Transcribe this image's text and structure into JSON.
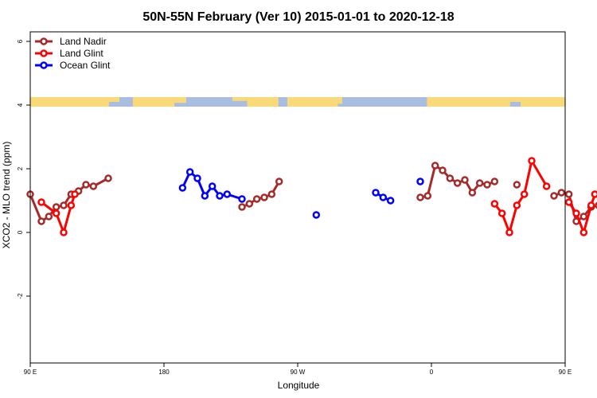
{
  "chart_data": {
    "type": "line",
    "title": "50N-55N February (Ver 10)   2015-01-01 to 2020-12-18",
    "xlabel": "Longitude",
    "ylabel": "XCO2 - MLO trend (ppm)",
    "xlim": [
      90,
      450
    ],
    "ylim": [
      -4.1,
      6.3
    ],
    "x_ticks": [
      {
        "value": 90,
        "label": "90 E"
      },
      {
        "value": 180,
        "label": "180"
      },
      {
        "value": 270,
        "label": "90 W"
      },
      {
        "value": 360,
        "label": "0"
      },
      {
        "value": 450,
        "label": "90 E"
      },
      {
        "value": 540,
        "label": "180"
      }
    ],
    "y_ticks": [
      {
        "value": -2,
        "label": "-2"
      },
      {
        "value": 0,
        "label": "0"
      },
      {
        "value": 2,
        "label": "2"
      },
      {
        "value": 4,
        "label": "4"
      },
      {
        "value": 6,
        "label": "6"
      }
    ],
    "legend_position": "top-left",
    "land_ocean_band": {
      "y_bottom": 3.95,
      "y_top": 4.25,
      "land_color": "#f9d97a",
      "ocean_color": "#a9bde0"
    },
    "series": [
      {
        "name": "Land Nadir",
        "color": "#a52a2a",
        "x": [
          90,
          97.5,
          102.5,
          107.5,
          112.5,
          117.5,
          122.5,
          127.5,
          132.5,
          142.5,
          232.5,
          237.5,
          242.5,
          247.5,
          252.5,
          257.5,
          352.5,
          357.5,
          362.5,
          367.5,
          372.5,
          377.5,
          382.5,
          387.5,
          392.5,
          397.5,
          402.5,
          417.5,
          442.5,
          447.5,
          452.5,
          457.5,
          462.5,
          467.5,
          472.5,
          477.5,
          482.5,
          487.5,
          502.5
        ],
        "y": [
          1.2,
          0.35,
          0.5,
          0.8,
          0.85,
          1.2,
          1.3,
          1.5,
          1.45,
          1.7,
          0.8,
          0.9,
          1.05,
          1.1,
          1.2,
          1.6,
          1.1,
          1.15,
          2.1,
          1.95,
          1.7,
          1.55,
          1.65,
          1.25,
          1.55,
          1.5,
          1.6,
          1.5,
          1.15,
          1.25,
          1.2,
          0.35,
          0.5,
          0.8,
          0.85,
          1.2,
          1.3,
          1.5,
          1.7
        ],
        "segments": [
          [
            0,
            9
          ],
          [
            10,
            15
          ],
          [
            16,
            26
          ],
          [
            28,
            38
          ]
        ]
      },
      {
        "name": "Land Glint",
        "color": "#ff0000",
        "x": [
          97.5,
          107.5,
          112.5,
          117.5,
          120,
          402.5,
          407.5,
          412.5,
          417.5,
          422.5,
          427.5,
          437.5,
          452.5,
          457.5,
          462.5,
          467.5,
          470
        ],
        "y": [
          0.95,
          0.6,
          0.0,
          0.85,
          1.2,
          0.9,
          0.6,
          0.0,
          0.85,
          1.2,
          2.25,
          1.45,
          0.95,
          0.6,
          0.0,
          0.85,
          1.2
        ],
        "segments": [
          [
            0,
            4
          ],
          [
            5,
            11
          ],
          [
            12,
            16
          ]
        ]
      },
      {
        "name": "Ocean Glint",
        "color": "#0000ff",
        "x": [
          192.5,
          197.5,
          202.5,
          207.5,
          212.5,
          217.5,
          222.5,
          232.5,
          282.5,
          322.5,
          327.5,
          332.5,
          352.5
        ],
        "y": [
          1.4,
          1.9,
          1.7,
          1.15,
          1.45,
          1.15,
          1.2,
          1.05,
          0.55,
          1.25,
          1.1,
          1.0,
          1.6
        ],
        "segments": [
          [
            0,
            7
          ],
          [
            8,
            8
          ],
          [
            9,
            11
          ],
          [
            12,
            12
          ]
        ]
      }
    ]
  }
}
